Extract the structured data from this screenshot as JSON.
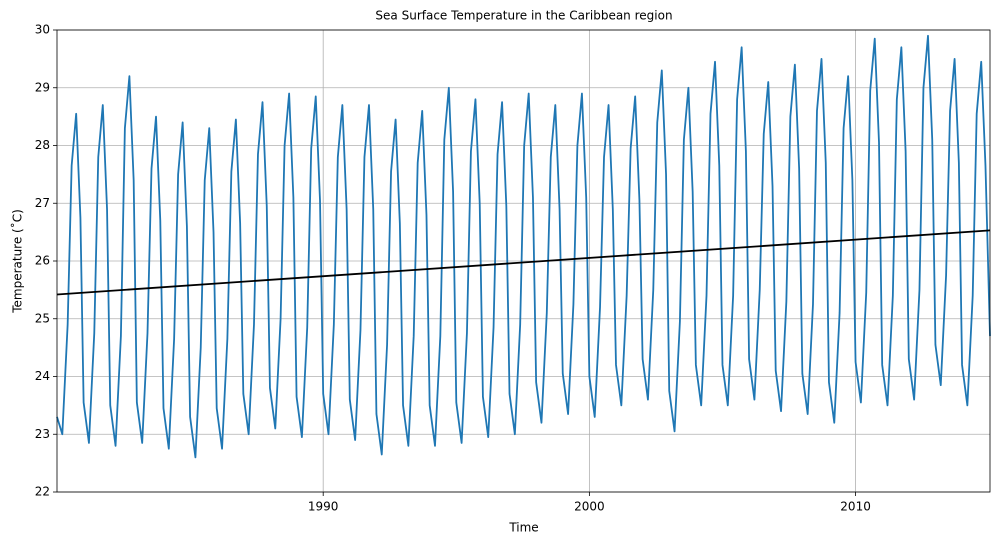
{
  "chart_data": {
    "type": "line",
    "title": "Sea Surface Temperature in the Caribbean region",
    "x_label": "Time",
    "y_label": "Temperature (˚C)",
    "xlim": [
      1980,
      2015.05
    ],
    "ylim": [
      22,
      30
    ],
    "xticks": [
      1990,
      2000,
      2010
    ],
    "yticks": [
      22,
      23,
      24,
      25,
      26,
      27,
      28,
      29,
      30
    ],
    "grid": true,
    "series": [
      {
        "color": "#1f77b4",
        "x": [
          1980,
          1980.2,
          1980.4,
          1980.55,
          1980.72,
          1980.88,
          1981,
          1981.2,
          1981.4,
          1981.55,
          1981.72,
          1981.88,
          1982,
          1982.2,
          1982.4,
          1982.55,
          1982.72,
          1982.88,
          1983,
          1983.2,
          1983.4,
          1983.55,
          1983.72,
          1983.88,
          1984,
          1984.2,
          1984.4,
          1984.55,
          1984.72,
          1984.88,
          1985,
          1985.2,
          1985.4,
          1985.55,
          1985.72,
          1985.88,
          1986,
          1986.2,
          1986.4,
          1986.55,
          1986.72,
          1986.88,
          1987,
          1987.2,
          1987.4,
          1987.55,
          1987.72,
          1987.88,
          1988,
          1988.2,
          1988.4,
          1988.55,
          1988.72,
          1988.88,
          1989,
          1989.2,
          1989.4,
          1989.55,
          1989.72,
          1989.88,
          1990,
          1990.2,
          1990.4,
          1990.55,
          1990.72,
          1990.88,
          1991,
          1991.2,
          1991.4,
          1991.55,
          1991.72,
          1991.88,
          1992,
          1992.2,
          1992.4,
          1992.55,
          1992.72,
          1992.88,
          1993,
          1993.2,
          1993.4,
          1993.55,
          1993.72,
          1993.88,
          1994,
          1994.2,
          1994.4,
          1994.55,
          1994.72,
          1994.88,
          1995,
          1995.2,
          1995.4,
          1995.55,
          1995.72,
          1995.88,
          1996,
          1996.2,
          1996.4,
          1996.55,
          1996.72,
          1996.88,
          1997,
          1997.2,
          1997.4,
          1997.55,
          1997.72,
          1997.88,
          1998,
          1998.2,
          1998.4,
          1998.55,
          1998.72,
          1998.88,
          1999,
          1999.2,
          1999.4,
          1999.55,
          1999.72,
          1999.88,
          2000,
          2000.2,
          2000.4,
          2000.55,
          2000.72,
          2000.88,
          2001,
          2001.2,
          2001.4,
          2001.55,
          2001.72,
          2001.88,
          2002,
          2002.2,
          2002.4,
          2002.55,
          2002.72,
          2002.88,
          2003,
          2003.2,
          2003.4,
          2003.55,
          2003.72,
          2003.88,
          2004,
          2004.2,
          2004.4,
          2004.55,
          2004.72,
          2004.88,
          2005,
          2005.2,
          2005.4,
          2005.55,
          2005.72,
          2005.88,
          2006,
          2006.2,
          2006.4,
          2006.55,
          2006.72,
          2006.88,
          2007,
          2007.2,
          2007.4,
          2007.55,
          2007.72,
          2007.88,
          2008,
          2008.2,
          2008.4,
          2008.55,
          2008.72,
          2008.88,
          2009,
          2009.2,
          2009.4,
          2009.55,
          2009.72,
          2009.88,
          2010,
          2010.2,
          2010.4,
          2010.55,
          2010.72,
          2010.88,
          2011,
          2011.2,
          2011.4,
          2011.55,
          2011.72,
          2011.88,
          2012,
          2012.2,
          2012.4,
          2012.55,
          2012.72,
          2012.88,
          2013,
          2013.2,
          2013.4,
          2013.55,
          2013.72,
          2013.88,
          2014,
          2014.2,
          2014.4,
          2014.55,
          2014.72,
          2014.88,
          2015.05
        ],
        "values": [
          23.3,
          23.0,
          24.9,
          27.65,
          28.55,
          26.75,
          23.55,
          22.85,
          24.75,
          27.8,
          28.7,
          26.9,
          23.5,
          22.8,
          24.7,
          28.3,
          29.2,
          27.4,
          23.55,
          22.85,
          24.75,
          27.6,
          28.5,
          26.7,
          23.45,
          22.75,
          24.65,
          27.5,
          28.4,
          26.6,
          23.3,
          22.6,
          24.5,
          27.4,
          28.3,
          26.5,
          23.45,
          22.75,
          24.65,
          27.55,
          28.45,
          26.65,
          23.7,
          23.0,
          24.9,
          27.85,
          28.75,
          26.95,
          23.8,
          23.1,
          25.0,
          28.0,
          28.9,
          27.1,
          23.65,
          22.95,
          24.85,
          27.95,
          28.85,
          27.05,
          23.7,
          23.0,
          24.9,
          27.8,
          28.7,
          26.9,
          23.6,
          22.9,
          24.8,
          27.8,
          28.7,
          26.9,
          23.35,
          22.65,
          24.55,
          27.55,
          28.45,
          26.65,
          23.5,
          22.8,
          24.7,
          27.7,
          28.6,
          26.8,
          23.5,
          22.8,
          24.7,
          28.1,
          29.0,
          27.2,
          23.55,
          22.85,
          24.75,
          27.9,
          28.8,
          27.0,
          23.65,
          22.95,
          24.85,
          27.85,
          28.75,
          26.95,
          23.7,
          23.0,
          24.9,
          28.0,
          28.9,
          27.1,
          23.9,
          23.2,
          25.1,
          27.8,
          28.7,
          26.9,
          24.05,
          23.35,
          25.25,
          28.0,
          28.9,
          27.1,
          24.0,
          23.3,
          25.2,
          27.8,
          28.7,
          26.9,
          24.2,
          23.5,
          25.4,
          27.95,
          28.85,
          27.05,
          24.3,
          23.6,
          25.5,
          28.4,
          29.3,
          27.5,
          23.75,
          23.05,
          24.95,
          28.1,
          29.0,
          27.2,
          24.2,
          23.5,
          25.4,
          28.55,
          29.45,
          27.65,
          24.2,
          23.5,
          25.4,
          28.8,
          29.7,
          27.9,
          24.3,
          23.6,
          25.5,
          28.2,
          29.1,
          27.3,
          24.1,
          23.4,
          25.3,
          28.5,
          29.4,
          27.6,
          24.05,
          23.35,
          25.25,
          28.6,
          29.5,
          27.7,
          23.9,
          23.2,
          25.1,
          28.3,
          29.2,
          27.4,
          24.25,
          23.55,
          25.45,
          28.95,
          29.85,
          28.05,
          24.2,
          23.5,
          25.4,
          28.8,
          29.7,
          27.9,
          24.3,
          23.6,
          25.5,
          29.0,
          29.9,
          28.1,
          24.55,
          23.85,
          25.75,
          28.6,
          29.5,
          27.7,
          24.2,
          23.5,
          25.4,
          28.55,
          29.45,
          27.65,
          24.7
        ]
      },
      {
        "color": "#000000",
        "x": [
          1980,
          2015.05
        ],
        "values": [
          25.42,
          26.53
        ]
      }
    ]
  }
}
